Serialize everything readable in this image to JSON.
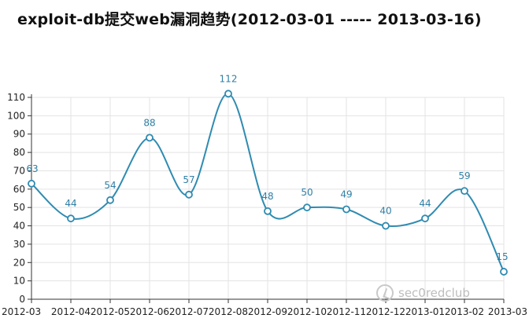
{
  "title": "exploit-db提交web漏洞趋势(2012-03-01 ----- 2013-03-16)",
  "watermark": "sec0redclub",
  "colors": {
    "line": "#2f8bb1",
    "label": "#2f7fa5",
    "grid": "#e3e3e3",
    "axis": "#333333"
  },
  "chart_data": {
    "type": "line",
    "title": "exploit-db提交web漏洞趋势(2012-03-01 ----- 2013-03-16)",
    "categories": [
      "2012-03",
      "2012-04",
      "2012-05",
      "2012-06",
      "2012-07",
      "2012-08",
      "2012-09",
      "2012-10",
      "2012-11",
      "2012-12",
      "2013-01",
      "2013-02",
      "2013-03"
    ],
    "values": [
      63,
      44,
      54,
      88,
      57,
      112,
      48,
      50,
      49,
      40,
      44,
      59,
      15
    ],
    "yticks": [
      0,
      10,
      20,
      30,
      40,
      50,
      60,
      70,
      80,
      90,
      100,
      110
    ],
    "ylim": [
      0,
      110
    ],
    "grid": true,
    "smooth": true,
    "data_labels": true,
    "markers": "hollow-circle"
  }
}
